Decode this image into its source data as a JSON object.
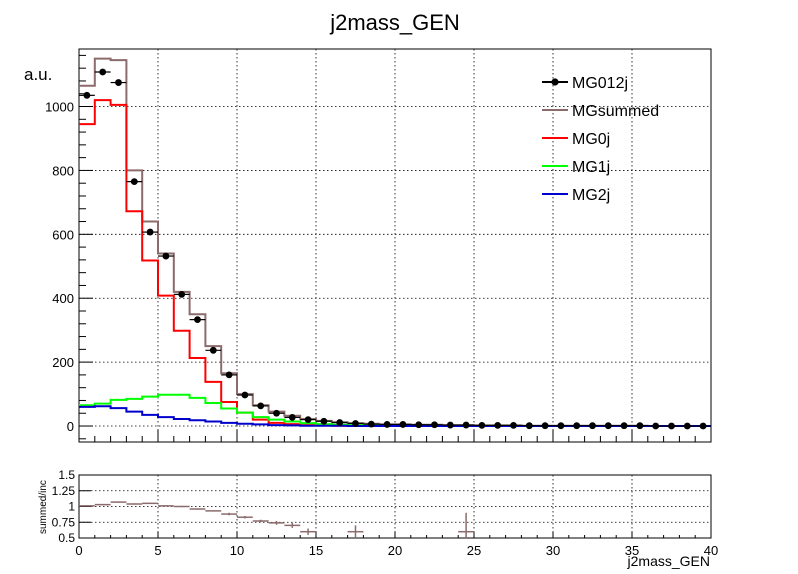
{
  "chart_data": {
    "type": "line",
    "title": "j2mass_GEN",
    "xlabel": "j2mass_GEN",
    "ylabel": "a.u.",
    "xlim": [
      0,
      40
    ],
    "ylim": [
      -50,
      1180
    ],
    "x_ticks": [
      "0",
      "5",
      "10",
      "15",
      "20",
      "25",
      "30",
      "35",
      "40"
    ],
    "y_ticks": [
      "0",
      "200",
      "400",
      "600",
      "800",
      "1000"
    ],
    "grid": true,
    "legend_position": "top-right",
    "bin_edges": [
      0,
      1,
      2,
      3,
      4,
      5,
      6,
      7,
      8,
      9,
      10,
      11,
      12,
      13,
      14,
      15,
      16,
      17,
      18,
      19,
      20,
      21,
      22,
      23,
      24,
      25,
      26,
      27,
      28,
      29,
      30,
      31,
      32,
      33,
      34,
      35,
      36,
      37,
      38,
      39,
      40
    ],
    "series": [
      {
        "name": "MG012j",
        "style": "markers",
        "color": "#000000",
        "values": [
          1035,
          1108,
          1075,
          765,
          607,
          532,
          412,
          333,
          237,
          160,
          97,
          63,
          40,
          27,
          20,
          15,
          11,
          8,
          6,
          5,
          5,
          4,
          4,
          3,
          3,
          2,
          2,
          2,
          1,
          1,
          1,
          1,
          1,
          1,
          1,
          1,
          0,
          0,
          0,
          0
        ]
      },
      {
        "name": "MGsummed",
        "style": "step",
        "color": "#8b6b6b",
        "values": [
          1065,
          1150,
          1145,
          800,
          640,
          540,
          420,
          350,
          250,
          165,
          100,
          65,
          45,
          32,
          22,
          16,
          12,
          9,
          7,
          5,
          5,
          4,
          4,
          3,
          3,
          2,
          2,
          2,
          1,
          1,
          1,
          1,
          1,
          1,
          1,
          1,
          0,
          0,
          0,
          0
        ]
      },
      {
        "name": "MG0j",
        "style": "step",
        "color": "#ff0000",
        "values": [
          945,
          1020,
          1005,
          672,
          518,
          408,
          298,
          213,
          138,
          75,
          42,
          20,
          10,
          6,
          3,
          2,
          1,
          0,
          0,
          0,
          0,
          0,
          0,
          0,
          0,
          0,
          0,
          0,
          0,
          0,
          0,
          0,
          0,
          0,
          0,
          0,
          0,
          0,
          0,
          0
        ]
      },
      {
        "name": "MG1j",
        "style": "step",
        "color": "#00ff00",
        "values": [
          65,
          70,
          82,
          85,
          92,
          98,
          98,
          88,
          72,
          55,
          42,
          28,
          20,
          14,
          9,
          6,
          4,
          3,
          2,
          1,
          1,
          1,
          0,
          0,
          0,
          0,
          0,
          0,
          0,
          0,
          0,
          0,
          0,
          0,
          0,
          0,
          0,
          0,
          0,
          0
        ]
      },
      {
        "name": "MG2j",
        "style": "step",
        "color": "#0000cc",
        "values": [
          60,
          62,
          56,
          45,
          35,
          28,
          22,
          18,
          14,
          10,
          7,
          5,
          3,
          2,
          1,
          1,
          1,
          0,
          0,
          0,
          0,
          0,
          0,
          0,
          0,
          0,
          0,
          0,
          0,
          0,
          0,
          0,
          0,
          0,
          0,
          0,
          0,
          0,
          0,
          0
        ]
      }
    ],
    "ratio_panel": {
      "ylabel": "summed/inc",
      "ylim": [
        0.5,
        1.5
      ],
      "y_ticks": [
        "0.5",
        "0.75",
        "1",
        "1.25",
        "1.5"
      ],
      "color": "#8b6b6b",
      "points": [
        {
          "x": 0.5,
          "y": 1.01,
          "err": 0.01
        },
        {
          "x": 1.5,
          "y": 1.03,
          "err": 0.01
        },
        {
          "x": 2.5,
          "y": 1.07,
          "err": 0.01
        },
        {
          "x": 3.5,
          "y": 1.04,
          "err": 0.01
        },
        {
          "x": 4.5,
          "y": 1.05,
          "err": 0.01
        },
        {
          "x": 5.5,
          "y": 1.01,
          "err": 0.01
        },
        {
          "x": 6.5,
          "y": 1.0,
          "err": 0.01
        },
        {
          "x": 7.5,
          "y": 0.96,
          "err": 0.01
        },
        {
          "x": 8.5,
          "y": 0.93,
          "err": 0.01
        },
        {
          "x": 9.5,
          "y": 0.88,
          "err": 0.02
        },
        {
          "x": 10.5,
          "y": 0.83,
          "err": 0.02
        },
        {
          "x": 11.5,
          "y": 0.77,
          "err": 0.02
        },
        {
          "x": 12.5,
          "y": 0.74,
          "err": 0.03
        },
        {
          "x": 13.5,
          "y": 0.7,
          "err": 0.04
        },
        {
          "x": 14.5,
          "y": 0.6,
          "err": 0.05
        },
        {
          "x": 17.5,
          "y": 0.6,
          "err": 0.1
        },
        {
          "x": 24.5,
          "y": 0.6,
          "err": 0.3
        }
      ]
    }
  }
}
